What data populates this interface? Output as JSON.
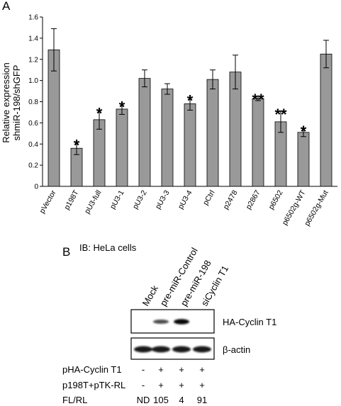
{
  "panel_a": {
    "label": "A",
    "chart_data": {
      "type": "bar",
      "ylabel_line1": "Relative expression",
      "ylabel_line2": "shmiR-198/shGFP",
      "ylim": [
        0,
        1.6
      ],
      "yticks": [
        "0",
        "0.2",
        "0.4",
        "0.6",
        "0.8",
        "1.0",
        "1.2",
        "1.4",
        "1.6"
      ],
      "ytick_values": [
        0,
        0.2,
        0.4,
        0.6,
        0.8,
        1.0,
        1.2,
        1.4,
        1.6
      ],
      "categories": [
        "pVector",
        "p198T",
        "pU3-full",
        "pU3-1",
        "pU3-2",
        "pU3-3",
        "pU3-4",
        "pCtrl",
        "p2478",
        "p2867",
        "p6502",
        "p6502g-WT",
        "p6502g-Mut"
      ],
      "values": [
        1.29,
        0.36,
        0.63,
        0.73,
        1.02,
        0.92,
        0.78,
        1.01,
        1.08,
        0.83,
        0.61,
        0.51,
        1.25
      ],
      "errors": [
        0.2,
        0.06,
        0.09,
        0.05,
        0.08,
        0.05,
        0.06,
        0.09,
        0.16,
        0.02,
        0.1,
        0.04,
        0.13
      ],
      "significance": [
        "",
        "*",
        "*",
        "*",
        "",
        "",
        "*",
        "",
        "",
        "**",
        "**",
        "*",
        ""
      ],
      "bar_color": "#999999",
      "grid": false
    }
  },
  "panel_b": {
    "label": "B",
    "title": "IB: HeLa cells",
    "lanes": [
      "Mock",
      "pre-miR-Control",
      "pre-miR-198",
      "siCyclin T1"
    ],
    "blots": [
      "HA-Cyclin T1",
      "β-actin"
    ],
    "rows": [
      {
        "label": "pHA-Cyclin T1",
        "values": [
          "-",
          "+",
          "+",
          "+"
        ]
      },
      {
        "label": "p198T+pTK-RL",
        "values": [
          "-",
          "+",
          "+",
          "+"
        ]
      },
      {
        "label": "FL/RL",
        "values": [
          "ND",
          "105",
          "4",
          "91"
        ]
      }
    ],
    "ha_band_intensity": [
      0,
      0.55,
      0.95,
      0
    ],
    "actin_band_intensity": [
      1,
      1,
      1,
      1
    ]
  }
}
